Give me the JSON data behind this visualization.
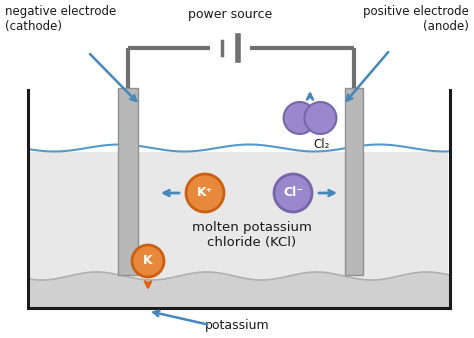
{
  "bg_color": "#ffffff",
  "container_color": "#1a1a1a",
  "electrode_color": "#b8b8b8",
  "electrode_edge": "#909090",
  "wire_color": "#707070",
  "liquid_fill": "#e8e8e8",
  "sediment_fill": "#d0d0d0",
  "wave_color": "#5599cc",
  "sed_wave_color": "#b0b0b0",
  "arrow_blue": "#4488bb",
  "arrow_orange": "#e06010",
  "K_circle_fill": "#e8883a",
  "K_circle_edge": "#cc6010",
  "Kplus_circle_fill": "#e8883a",
  "Kplus_circle_edge": "#cc6010",
  "Cl_circle_fill": "#9988cc",
  "Cl_circle_edge": "#7766aa",
  "Cl2_circle_fill": "#9988cc",
  "Cl2_circle_edge": "#7766aa",
  "text_color": "#1a1a1a",
  "label_neg": "negative electrode\n(cathode)",
  "label_pos": "positive electrode\n(anode)",
  "label_power": "power source",
  "label_molten": "molten potassium\nchloride (KCl)",
  "label_potassium": "potassium",
  "figsize": [
    4.74,
    3.38
  ],
  "dpi": 100
}
